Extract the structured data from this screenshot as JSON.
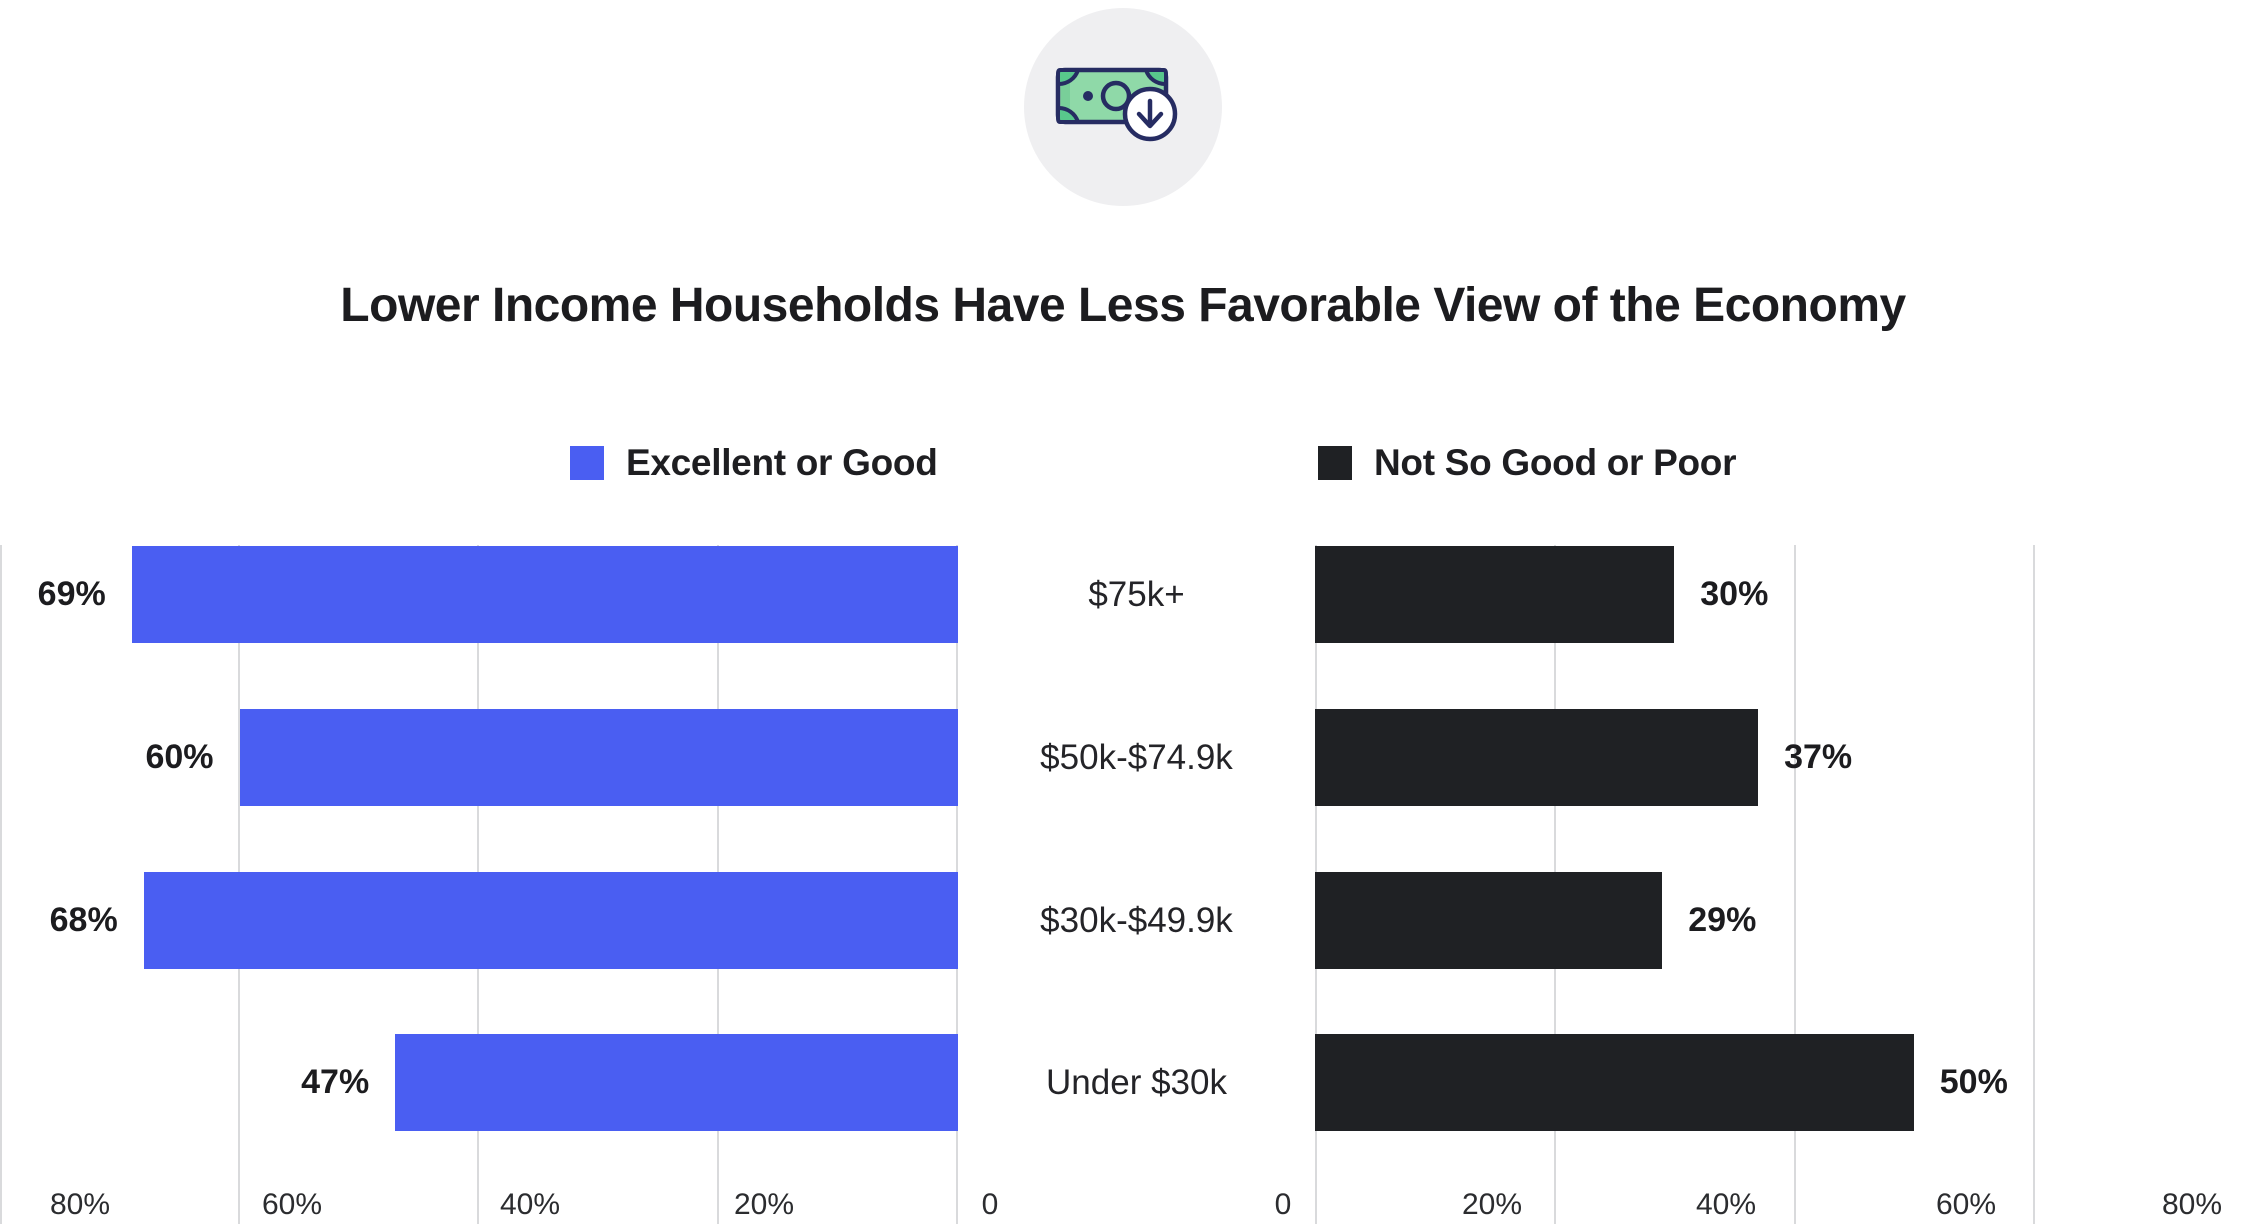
{
  "title": "Lower Income Households Have Less Favorable View of the Economy",
  "icon": {
    "name": "money-bill-download-icon",
    "circle_bg": "#efeff1",
    "bill_green": "#8fd9a8",
    "bill_dark_green": "#58c78c",
    "outline_navy": "#262c62"
  },
  "legend": {
    "left": {
      "label": "Excellent or Good",
      "color": "#4a5ef2"
    },
    "right": {
      "label": "Not So Good or Poor",
      "color": "#1f2124"
    }
  },
  "chart_data": {
    "type": "bar",
    "orientation": "horizontal-diverging",
    "title": "Lower Income Households Have Less Favorable View of the Economy",
    "categories": [
      "$75k+",
      "$50k-$74.9k",
      "$30k-$49.9k",
      "Under $30k"
    ],
    "series": [
      {
        "name": "Excellent or Good",
        "side": "left",
        "axis_direction": "reversed",
        "color": "#4a5ef2",
        "values": [
          69,
          60,
          68,
          47
        ],
        "value_labels": [
          "69%",
          "60%",
          "68%",
          "47%"
        ]
      },
      {
        "name": "Not So Good or Poor",
        "side": "right",
        "axis_direction": "normal",
        "color": "#1f2124",
        "values": [
          30,
          37,
          29,
          50
        ],
        "value_labels": [
          "30%",
          "37%",
          "29%",
          "50%"
        ]
      }
    ],
    "xlim": [
      0,
      80
    ],
    "grid": true,
    "gridline_color": "#d9dadc",
    "left_axis_ticks": [
      "80%",
      "60%",
      "40%",
      "20%",
      "0"
    ],
    "right_axis_ticks": [
      "0",
      "20%",
      "40%",
      "60%",
      "80%"
    ],
    "xlabel": "",
    "ylabel": ""
  }
}
